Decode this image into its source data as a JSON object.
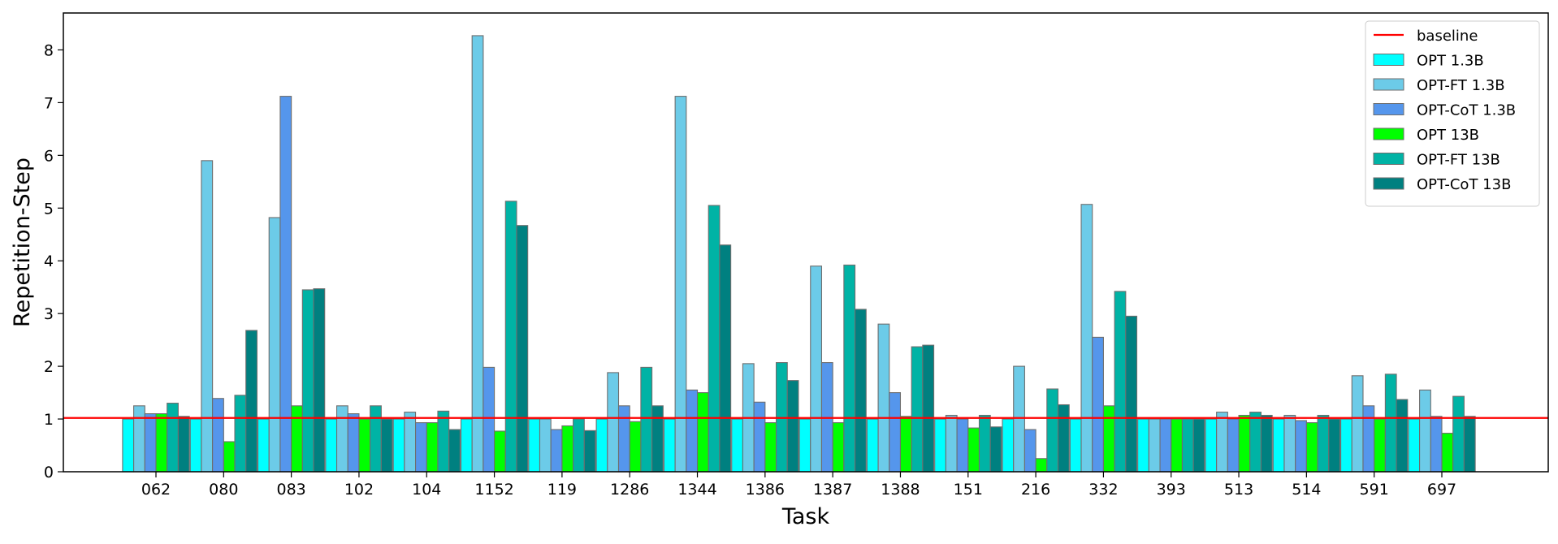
{
  "chart_data": {
    "type": "bar",
    "xlabel": "Task",
    "ylabel": "Repetition-Step",
    "ylim": [
      0,
      8.7
    ],
    "yticks": [
      0,
      1,
      2,
      3,
      4,
      5,
      6,
      7,
      8
    ],
    "grid": false,
    "legend_position": "top-right",
    "baseline": {
      "name": "baseline",
      "value": 1.02,
      "color": "#ff0000"
    },
    "categories": [
      "062",
      "080",
      "083",
      "102",
      "104",
      "1152",
      "119",
      "1286",
      "1344",
      "1386",
      "1387",
      "1388",
      "151",
      "216",
      "332",
      "393",
      "513",
      "514",
      "591",
      "697"
    ],
    "series": [
      {
        "name": "OPT 1.3B",
        "color": "#00ffff",
        "values": [
          1.0,
          1.0,
          1.0,
          1.0,
          1.0,
          1.0,
          1.0,
          1.0,
          1.0,
          1.0,
          1.0,
          1.0,
          1.0,
          1.0,
          1.0,
          1.0,
          1.0,
          1.0,
          1.0,
          1.0
        ]
      },
      {
        "name": "OPT-FT 1.3B",
        "color": "#6ccbe8",
        "values": [
          1.25,
          5.9,
          4.82,
          1.25,
          1.13,
          8.27,
          1.0,
          1.88,
          7.12,
          2.05,
          3.9,
          2.8,
          1.07,
          2.0,
          5.07,
          1.0,
          1.13,
          1.07,
          1.82,
          1.55
        ]
      },
      {
        "name": "OPT-CoT 1.3B",
        "color": "#5596ec",
        "values": [
          1.1,
          1.39,
          7.12,
          1.1,
          0.93,
          1.98,
          0.8,
          1.25,
          1.55,
          1.32,
          2.07,
          1.5,
          1.0,
          0.8,
          2.55,
          1.0,
          1.0,
          0.97,
          1.25,
          1.05
        ]
      },
      {
        "name": "OPT 13B",
        "color": "#00ff00",
        "values": [
          1.1,
          0.57,
          1.25,
          1.0,
          0.93,
          0.77,
          0.87,
          0.95,
          1.5,
          0.93,
          0.93,
          1.05,
          0.83,
          0.25,
          1.25,
          1.0,
          1.07,
          0.93,
          1.0,
          0.73
        ]
      },
      {
        "name": "OPT-FT 13B",
        "color": "#00b3a5",
        "values": [
          1.3,
          1.45,
          3.45,
          1.25,
          1.15,
          5.13,
          1.0,
          1.98,
          5.05,
          2.07,
          3.92,
          2.37,
          1.07,
          1.57,
          3.42,
          1.0,
          1.13,
          1.07,
          1.85,
          1.43
        ]
      },
      {
        "name": "OPT-CoT 13B",
        "color": "#008080",
        "values": [
          1.05,
          2.68,
          3.47,
          1.0,
          0.8,
          4.67,
          0.78,
          1.25,
          4.3,
          1.73,
          3.08,
          2.4,
          0.85,
          1.27,
          2.95,
          1.0,
          1.07,
          1.0,
          1.37,
          1.05
        ]
      }
    ]
  }
}
